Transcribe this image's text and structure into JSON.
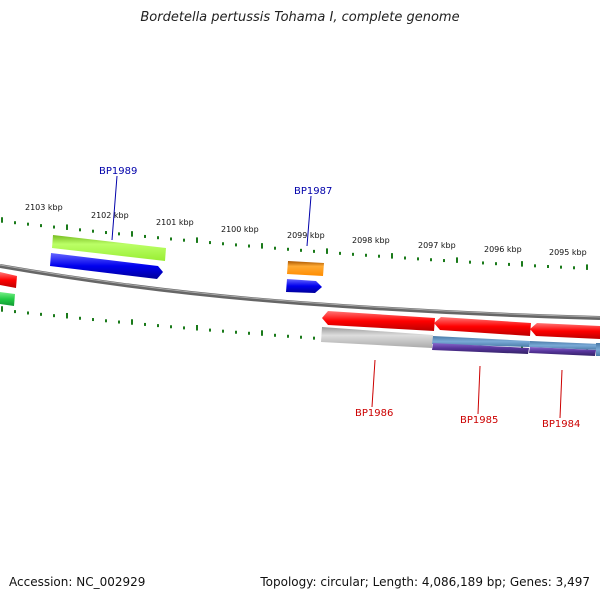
{
  "title": "Bordetella pertussis Tohama I, complete genome",
  "footer": {
    "accession": "Accession: NC_002929",
    "summary": "Topology: circular; Length: 4,086,189 bp; Genes: 3,497"
  },
  "ticks": [
    "2103 kbp",
    "2102 kbp",
    "2101 kbp",
    "2100 kbp",
    "2099 kbp",
    "2098 kbp",
    "2097 kbp",
    "2096 kbp",
    "2095 kbp"
  ],
  "gene_labels": {
    "forward": [
      "BP1989",
      "BP1987"
    ],
    "reverse": [
      "BP1986",
      "BP1985",
      "BP1984"
    ]
  },
  "colors": {
    "backbone": "#777777",
    "tick": "#1a7a1a",
    "forward_label": "#0000aa",
    "reverse_label": "#cc0000",
    "cds_red": "#ff0000",
    "blue": "#0000ee",
    "light_green": "#99ee33",
    "orange": "#ff8c00",
    "grey": "#bbbbbb",
    "steel_blue": "#5e8fc0",
    "purple": "#553399",
    "green": "#22cc44"
  }
}
